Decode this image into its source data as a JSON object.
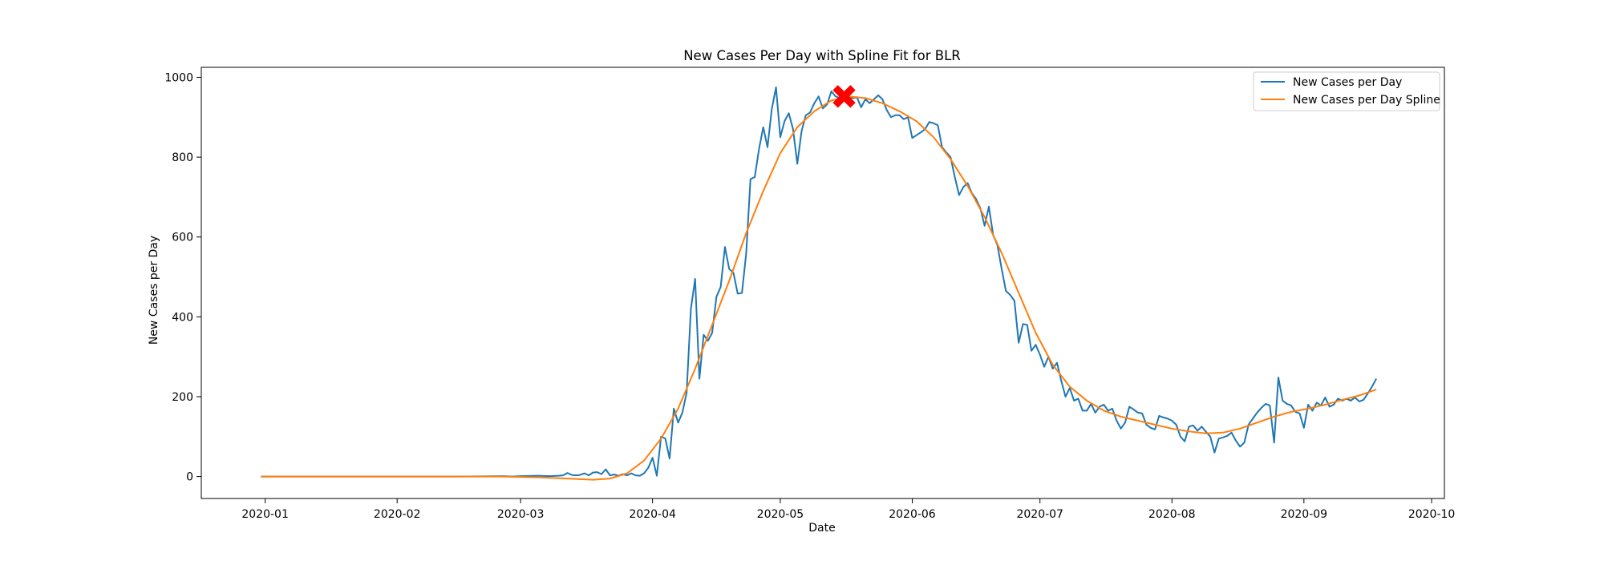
{
  "chart_data": {
    "type": "line",
    "title": "New Cases Per Day with Spline Fit for BLR",
    "xlabel": "Date",
    "ylabel": "New Cases per Day",
    "x_is_date": true,
    "xlim": [
      "2019-12-17",
      "2020-10-04"
    ],
    "ylim": [
      -55,
      1025
    ],
    "xticks": [
      {
        "date": "2020-01-01",
        "label": "2020-01"
      },
      {
        "date": "2020-02-01",
        "label": "2020-02"
      },
      {
        "date": "2020-03-01",
        "label": "2020-03"
      },
      {
        "date": "2020-04-01",
        "label": "2020-04"
      },
      {
        "date": "2020-05-01",
        "label": "2020-05"
      },
      {
        "date": "2020-06-01",
        "label": "2020-06"
      },
      {
        "date": "2020-07-01",
        "label": "2020-07"
      },
      {
        "date": "2020-08-01",
        "label": "2020-08"
      },
      {
        "date": "2020-09-01",
        "label": "2020-09"
      },
      {
        "date": "2020-10-01",
        "label": "2020-10"
      }
    ],
    "yticks": [
      0,
      200,
      400,
      600,
      800,
      1000
    ],
    "grid": false,
    "legend_position": "top-right",
    "series": [
      {
        "name": "New Cases per Day",
        "color": "#1f77b4",
        "points": [
          [
            "2019-12-31",
            0
          ],
          [
            "2020-01-15",
            0
          ],
          [
            "2020-02-01",
            0
          ],
          [
            "2020-02-15",
            0
          ],
          [
            "2020-02-26",
            1
          ],
          [
            "2020-02-28",
            0
          ],
          [
            "2020-03-01",
            1
          ],
          [
            "2020-03-05",
            2
          ],
          [
            "2020-03-08",
            1
          ],
          [
            "2020-03-10",
            2
          ],
          [
            "2020-03-11",
            3
          ],
          [
            "2020-03-12",
            9
          ],
          [
            "2020-03-13",
            4
          ],
          [
            "2020-03-14",
            3
          ],
          [
            "2020-03-15",
            4
          ],
          [
            "2020-03-16",
            8
          ],
          [
            "2020-03-17",
            3
          ],
          [
            "2020-03-18",
            10
          ],
          [
            "2020-03-19",
            11
          ],
          [
            "2020-03-20",
            6
          ],
          [
            "2020-03-21",
            18
          ],
          [
            "2020-03-22",
            3
          ],
          [
            "2020-03-23",
            5
          ],
          [
            "2020-03-24",
            2
          ],
          [
            "2020-03-25",
            6
          ],
          [
            "2020-03-26",
            3
          ],
          [
            "2020-03-27",
            8
          ],
          [
            "2020-03-28",
            3
          ],
          [
            "2020-03-29",
            2
          ],
          [
            "2020-03-30",
            8
          ],
          [
            "2020-03-31",
            22
          ],
          [
            "2020-04-01",
            47
          ],
          [
            "2020-04-02",
            2
          ],
          [
            "2020-04-03",
            100
          ],
          [
            "2020-04-04",
            95
          ],
          [
            "2020-04-05",
            45
          ],
          [
            "2020-04-06",
            170
          ],
          [
            "2020-04-07",
            135
          ],
          [
            "2020-04-08",
            160
          ],
          [
            "2020-04-09",
            210
          ],
          [
            "2020-04-10",
            420
          ],
          [
            "2020-04-11",
            495
          ],
          [
            "2020-04-12",
            245
          ],
          [
            "2020-04-13",
            355
          ],
          [
            "2020-04-14",
            340
          ],
          [
            "2020-04-15",
            360
          ],
          [
            "2020-04-16",
            450
          ],
          [
            "2020-04-17",
            475
          ],
          [
            "2020-04-18",
            575
          ],
          [
            "2020-04-19",
            520
          ],
          [
            "2020-04-20",
            510
          ],
          [
            "2020-04-21",
            458
          ],
          [
            "2020-04-22",
            460
          ],
          [
            "2020-04-23",
            560
          ],
          [
            "2020-04-24",
            745
          ],
          [
            "2020-04-25",
            750
          ],
          [
            "2020-04-26",
            820
          ],
          [
            "2020-04-27",
            875
          ],
          [
            "2020-04-28",
            825
          ],
          [
            "2020-04-29",
            920
          ],
          [
            "2020-04-30",
            975
          ],
          [
            "2020-05-01",
            850
          ],
          [
            "2020-05-02",
            890
          ],
          [
            "2020-05-03",
            910
          ],
          [
            "2020-05-04",
            870
          ],
          [
            "2020-05-05",
            783
          ],
          [
            "2020-05-06",
            865
          ],
          [
            "2020-05-07",
            905
          ],
          [
            "2020-05-08",
            912
          ],
          [
            "2020-05-09",
            935
          ],
          [
            "2020-05-10",
            952
          ],
          [
            "2020-05-11",
            922
          ],
          [
            "2020-05-12",
            932
          ],
          [
            "2020-05-13",
            965
          ],
          [
            "2020-05-14",
            952
          ],
          [
            "2020-05-15",
            948
          ],
          [
            "2020-05-16",
            958
          ],
          [
            "2020-05-17",
            950
          ],
          [
            "2020-05-18",
            948
          ],
          [
            "2020-05-19",
            950
          ],
          [
            "2020-05-20",
            925
          ],
          [
            "2020-05-21",
            945
          ],
          [
            "2020-05-22",
            935
          ],
          [
            "2020-05-23",
            945
          ],
          [
            "2020-05-24",
            955
          ],
          [
            "2020-05-25",
            945
          ],
          [
            "2020-05-26",
            918
          ],
          [
            "2020-05-27",
            900
          ],
          [
            "2020-05-28",
            905
          ],
          [
            "2020-05-29",
            905
          ],
          [
            "2020-05-30",
            895
          ],
          [
            "2020-05-31",
            900
          ],
          [
            "2020-06-01",
            848
          ],
          [
            "2020-06-02",
            855
          ],
          [
            "2020-06-03",
            862
          ],
          [
            "2020-06-04",
            870
          ],
          [
            "2020-06-05",
            888
          ],
          [
            "2020-06-06",
            885
          ],
          [
            "2020-06-07",
            880
          ],
          [
            "2020-06-08",
            825
          ],
          [
            "2020-06-09",
            812
          ],
          [
            "2020-06-10",
            800
          ],
          [
            "2020-06-11",
            750
          ],
          [
            "2020-06-12",
            705
          ],
          [
            "2020-06-13",
            725
          ],
          [
            "2020-06-14",
            735
          ],
          [
            "2020-06-15",
            710
          ],
          [
            "2020-06-16",
            695
          ],
          [
            "2020-06-17",
            672
          ],
          [
            "2020-06-18",
            628
          ],
          [
            "2020-06-19",
            676
          ],
          [
            "2020-06-20",
            605
          ],
          [
            "2020-06-21",
            580
          ],
          [
            "2020-06-22",
            520
          ],
          [
            "2020-06-23",
            465
          ],
          [
            "2020-06-24",
            455
          ],
          [
            "2020-06-25",
            440
          ],
          [
            "2020-06-26",
            335
          ],
          [
            "2020-06-27",
            382
          ],
          [
            "2020-06-28",
            380
          ],
          [
            "2020-06-29",
            315
          ],
          [
            "2020-06-30",
            330
          ],
          [
            "2020-07-01",
            305
          ],
          [
            "2020-07-02",
            275
          ],
          [
            "2020-07-03",
            300
          ],
          [
            "2020-07-04",
            270
          ],
          [
            "2020-07-05",
            285
          ],
          [
            "2020-07-06",
            240
          ],
          [
            "2020-07-07",
            200
          ],
          [
            "2020-07-08",
            222
          ],
          [
            "2020-07-09",
            190
          ],
          [
            "2020-07-10",
            195
          ],
          [
            "2020-07-11",
            165
          ],
          [
            "2020-07-12",
            165
          ],
          [
            "2020-07-13",
            182
          ],
          [
            "2020-07-14",
            160
          ],
          [
            "2020-07-15",
            175
          ],
          [
            "2020-07-16",
            180
          ],
          [
            "2020-07-17",
            165
          ],
          [
            "2020-07-18",
            170
          ],
          [
            "2020-07-19",
            140
          ],
          [
            "2020-07-20",
            120
          ],
          [
            "2020-07-21",
            135
          ],
          [
            "2020-07-22",
            175
          ],
          [
            "2020-07-23",
            168
          ],
          [
            "2020-07-24",
            160
          ],
          [
            "2020-07-25",
            158
          ],
          [
            "2020-07-26",
            130
          ],
          [
            "2020-07-27",
            122
          ],
          [
            "2020-07-28",
            118
          ],
          [
            "2020-07-29",
            152
          ],
          [
            "2020-07-30",
            148
          ],
          [
            "2020-07-31",
            145
          ],
          [
            "2020-08-01",
            140
          ],
          [
            "2020-08-02",
            130
          ],
          [
            "2020-08-03",
            100
          ],
          [
            "2020-08-04",
            88
          ],
          [
            "2020-08-05",
            125
          ],
          [
            "2020-08-06",
            128
          ],
          [
            "2020-08-07",
            115
          ],
          [
            "2020-08-08",
            125
          ],
          [
            "2020-08-09",
            112
          ],
          [
            "2020-08-10",
            100
          ],
          [
            "2020-08-11",
            60
          ],
          [
            "2020-08-12",
            95
          ],
          [
            "2020-08-13",
            98
          ],
          [
            "2020-08-14",
            102
          ],
          [
            "2020-08-15",
            110
          ],
          [
            "2020-08-16",
            90
          ],
          [
            "2020-08-17",
            75
          ],
          [
            "2020-08-18",
            85
          ],
          [
            "2020-08-19",
            130
          ],
          [
            "2020-08-20",
            145
          ],
          [
            "2020-08-21",
            160
          ],
          [
            "2020-08-22",
            172
          ],
          [
            "2020-08-23",
            182
          ],
          [
            "2020-08-24",
            178
          ],
          [
            "2020-08-25",
            85
          ],
          [
            "2020-08-26",
            248
          ],
          [
            "2020-08-27",
            190
          ],
          [
            "2020-08-28",
            182
          ],
          [
            "2020-08-29",
            178
          ],
          [
            "2020-08-30",
            162
          ],
          [
            "2020-08-31",
            158
          ],
          [
            "2020-09-01",
            122
          ],
          [
            "2020-09-02",
            180
          ],
          [
            "2020-09-03",
            165
          ],
          [
            "2020-09-04",
            185
          ],
          [
            "2020-09-05",
            178
          ],
          [
            "2020-09-06",
            198
          ],
          [
            "2020-09-07",
            175
          ],
          [
            "2020-09-08",
            180
          ],
          [
            "2020-09-09",
            195
          ],
          [
            "2020-09-10",
            190
          ],
          [
            "2020-09-11",
            195
          ],
          [
            "2020-09-12",
            190
          ],
          [
            "2020-09-13",
            198
          ],
          [
            "2020-09-14",
            188
          ],
          [
            "2020-09-15",
            192
          ],
          [
            "2020-09-16",
            208
          ],
          [
            "2020-09-17",
            225
          ],
          [
            "2020-09-18",
            245
          ]
        ]
      },
      {
        "name": "New Cases per Day Spline",
        "color": "#ff7f0e",
        "points": [
          [
            "2019-12-31",
            0
          ],
          [
            "2020-02-01",
            0
          ],
          [
            "2020-02-25",
            0
          ],
          [
            "2020-03-05",
            -2
          ],
          [
            "2020-03-12",
            -5
          ],
          [
            "2020-03-18",
            -8
          ],
          [
            "2020-03-22",
            -5
          ],
          [
            "2020-03-26",
            8
          ],
          [
            "2020-03-30",
            40
          ],
          [
            "2020-04-03",
            95
          ],
          [
            "2020-04-07",
            170
          ],
          [
            "2020-04-11",
            270
          ],
          [
            "2020-04-15",
            380
          ],
          [
            "2020-04-19",
            490
          ],
          [
            "2020-04-23",
            610
          ],
          [
            "2020-04-27",
            715
          ],
          [
            "2020-05-01",
            810
          ],
          [
            "2020-05-05",
            875
          ],
          [
            "2020-05-09",
            915
          ],
          [
            "2020-05-13",
            942
          ],
          [
            "2020-05-17",
            952
          ],
          [
            "2020-05-21",
            948
          ],
          [
            "2020-05-25",
            935
          ],
          [
            "2020-05-29",
            915
          ],
          [
            "2020-06-02",
            890
          ],
          [
            "2020-06-06",
            850
          ],
          [
            "2020-06-10",
            795
          ],
          [
            "2020-06-14",
            728
          ],
          [
            "2020-06-18",
            650
          ],
          [
            "2020-06-22",
            560
          ],
          [
            "2020-06-26",
            460
          ],
          [
            "2020-06-30",
            360
          ],
          [
            "2020-07-04",
            280
          ],
          [
            "2020-07-08",
            225
          ],
          [
            "2020-07-12",
            190
          ],
          [
            "2020-07-16",
            165
          ],
          [
            "2020-07-20",
            150
          ],
          [
            "2020-07-24",
            140
          ],
          [
            "2020-07-28",
            130
          ],
          [
            "2020-08-01",
            120
          ],
          [
            "2020-08-05",
            113
          ],
          [
            "2020-08-09",
            108
          ],
          [
            "2020-08-13",
            110
          ],
          [
            "2020-08-17",
            120
          ],
          [
            "2020-08-21",
            135
          ],
          [
            "2020-08-25",
            150
          ],
          [
            "2020-08-29",
            162
          ],
          [
            "2020-09-02",
            170
          ],
          [
            "2020-09-06",
            180
          ],
          [
            "2020-09-10",
            192
          ],
          [
            "2020-09-14",
            203
          ],
          [
            "2020-09-18",
            218
          ]
        ]
      }
    ],
    "peak_marker": {
      "date": "2020-05-16",
      "value": 952,
      "color": "#ff0000",
      "shape": "X"
    }
  }
}
